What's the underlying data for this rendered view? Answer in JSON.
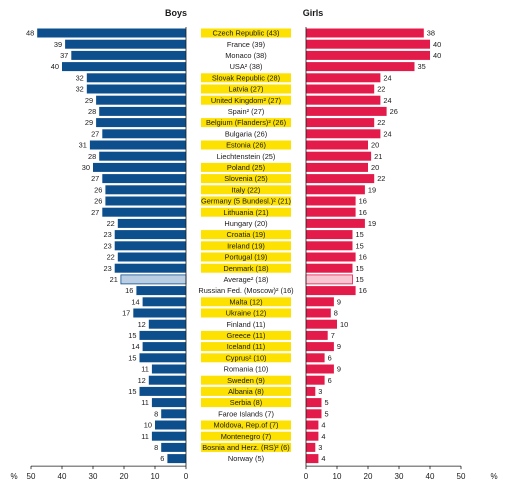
{
  "chart_data": {
    "type": "bar",
    "xlabel": "%",
    "boys_title": "Boys",
    "girls_title": "Girls",
    "xlim": [
      0,
      50
    ],
    "ticks": [
      50,
      40,
      30,
      20,
      10,
      0
    ],
    "colors": {
      "boys": "#0d4f8c",
      "girls": "#e31b4b",
      "highlight": "#fde100",
      "average_boys": "#b9cde3",
      "average_girls": "#f7c6d2"
    },
    "categories": [
      "Czech Republic (43)",
      "France (39)",
      "Monaco (38)",
      "USA² (38)",
      "Slovak Republic (28)",
      "Latvia (27)",
      "United Kingdom² (27)",
      "Spain² (27)",
      "Belgium (Flanders)² (26)",
      "Bulgaria (26)",
      "Estonia (26)",
      "Liechtenstein (25)",
      "Poland (25)",
      "Slovenia (25)",
      "Italy (22)",
      "Germany (5 Bundesl.)² (21)",
      "Lithuania (21)",
      "Hungary (20)",
      "Croatia (19)",
      "Ireland (19)",
      "Portugal (19)",
      "Denmark (18)",
      "Average² (18)",
      "Russian Fed. (Moscow)² (16)",
      "Malta (12)",
      "Ukraine (12)",
      "Finland (11)",
      "Greece (11)",
      "Iceland (11)",
      "Cyprus² (10)",
      "Romania (10)",
      "Sweden (9)",
      "Albania (8)",
      "Serbia (8)",
      "Faroe Islands (7)",
      "Moldova, Rep.of (7)",
      "Montenegro (7)",
      "Bosnia and Herz. (RS)² (6)",
      "Norway (5)"
    ],
    "highlighted": [
      true,
      false,
      false,
      false,
      true,
      true,
      true,
      false,
      true,
      false,
      true,
      false,
      true,
      true,
      true,
      true,
      true,
      false,
      true,
      true,
      true,
      true,
      false,
      false,
      true,
      true,
      false,
      true,
      true,
      true,
      false,
      true,
      true,
      true,
      false,
      true,
      true,
      true,
      false
    ],
    "average_index": 22,
    "series": [
      {
        "name": "Boys",
        "values": [
          48,
          39,
          37,
          40,
          32,
          32,
          29,
          28,
          29,
          27,
          31,
          28,
          30,
          27,
          26,
          26,
          27,
          22,
          23,
          23,
          22,
          23,
          21,
          16,
          14,
          17,
          12,
          15,
          14,
          15,
          11,
          12,
          15,
          11,
          8,
          10,
          11,
          8,
          6
        ]
      },
      {
        "name": "Girls",
        "values": [
          38,
          40,
          40,
          35,
          24,
          22,
          24,
          26,
          22,
          24,
          20,
          21,
          20,
          22,
          19,
          16,
          16,
          19,
          15,
          15,
          16,
          15,
          15,
          16,
          9,
          8,
          10,
          7,
          9,
          6,
          9,
          6,
          3,
          5,
          5,
          4,
          4,
          3,
          4
        ]
      }
    ]
  }
}
